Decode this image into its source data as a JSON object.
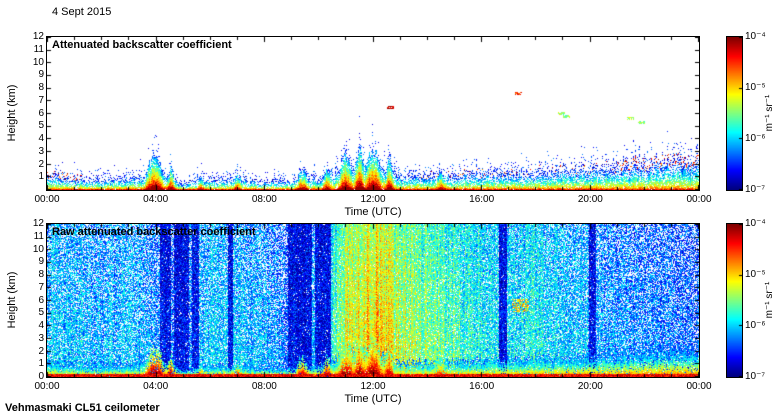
{
  "header": {
    "date": "4 Sept 2015"
  },
  "footer": {
    "instrument": "Vehmasmaki CL51 ceilometer"
  },
  "chart_data": [
    {
      "type": "heatmap",
      "title": "Attenuated backscatter coefficient",
      "xlabel": "Time (UTC)",
      "ylabel": "Height (km)",
      "x_ticks": [
        "00:00",
        "04:00",
        "08:00",
        "12:00",
        "16:00",
        "20:00",
        "00:00"
      ],
      "x_range_hours": [
        0,
        24
      ],
      "y_ticks": [
        12,
        11,
        10,
        9,
        8,
        7,
        6,
        5,
        4,
        3,
        2,
        1
      ],
      "ylim": [
        0,
        12
      ],
      "colormap": "jet",
      "colorbar": {
        "unit": "m⁻¹ sr⁻¹",
        "ticks": [
          "10⁻⁴",
          "10⁻⁵",
          "10⁻⁶",
          "10⁻⁷"
        ],
        "scale": "log10",
        "range": [
          1e-07,
          0.0001
        ]
      },
      "boundary_layer_top_km_hourly": [
        1.15,
        0.95,
        0.85,
        0.95,
        1.3,
        0.55,
        0.85,
        0.9,
        0.7,
        0.75,
        1.0,
        1.8,
        2.0,
        1.2,
        1.1,
        1.2,
        1.3,
        1.35,
        1.45,
        1.55,
        1.65,
        1.85,
        2.0,
        2.15,
        2.25
      ],
      "plumes": [
        {
          "t": 3.95,
          "w": 0.45,
          "top": 2.4,
          "v": 0.95
        },
        {
          "t": 4.55,
          "w": 0.2,
          "top": 1.6,
          "v": 0.85
        },
        {
          "t": 5.65,
          "w": 0.15,
          "top": 1.0,
          "v": 0.6
        },
        {
          "t": 7.0,
          "w": 0.2,
          "top": 1.1,
          "v": 0.65
        },
        {
          "t": 9.4,
          "w": 0.3,
          "top": 1.5,
          "v": 0.7
        },
        {
          "t": 10.3,
          "w": 0.2,
          "top": 1.6,
          "v": 0.7
        },
        {
          "t": 11.0,
          "w": 0.35,
          "top": 2.6,
          "v": 0.9
        },
        {
          "t": 11.5,
          "w": 0.25,
          "top": 2.9,
          "v": 0.95
        },
        {
          "t": 12.0,
          "w": 0.4,
          "top": 3.0,
          "v": 1.0
        },
        {
          "t": 12.6,
          "w": 0.2,
          "top": 2.2,
          "v": 0.85
        },
        {
          "t": 14.5,
          "w": 0.25,
          "top": 1.4,
          "v": 0.6
        }
      ],
      "cloud_specks": [
        {
          "t": 12.65,
          "h": 6.5,
          "v": 0.95
        },
        {
          "t": 17.35,
          "h": 7.6,
          "v": 0.8
        },
        {
          "t": 18.95,
          "h": 6.0,
          "v": 0.55
        },
        {
          "t": 19.15,
          "h": 5.8,
          "v": 0.5
        },
        {
          "t": 21.5,
          "h": 5.6,
          "v": 0.55
        },
        {
          "t": 21.9,
          "h": 5.3,
          "v": 0.5
        }
      ]
    },
    {
      "type": "heatmap",
      "title": "Raw attenuated backscatter coefficient",
      "xlabel": "Time (UTC)",
      "ylabel": "Height (km)",
      "x_ticks": [
        "00:00",
        "04:00",
        "08:00",
        "12:00",
        "16:00",
        "20:00",
        "00:00"
      ],
      "x_range_hours": [
        0,
        24
      ],
      "y_ticks": [
        12,
        11,
        10,
        9,
        8,
        7,
        6,
        5,
        4,
        3,
        2,
        1,
        0
      ],
      "ylim": [
        0,
        12
      ],
      "colormap": "jet",
      "colorbar": {
        "unit": "m⁻¹ sr⁻¹",
        "ticks": [
          "10⁻⁴",
          "10⁻⁵",
          "10⁻⁶",
          "10⁻⁷"
        ],
        "scale": "log10",
        "range": [
          1e-07,
          0.0001
        ]
      },
      "background_level_hourly": [
        0.3,
        0.3,
        0.28,
        0.3,
        0.26,
        0.2,
        0.33,
        0.3,
        0.28,
        0.2,
        0.28,
        0.55,
        0.66,
        0.54,
        0.48,
        0.43,
        0.38,
        0.34,
        0.36,
        0.31,
        0.28,
        0.26,
        0.24,
        0.22,
        0.2
      ],
      "dark_stripes": [
        {
          "t": 4.35,
          "w": 0.22
        },
        {
          "t": 4.95,
          "w": 0.28
        },
        {
          "t": 5.45,
          "w": 0.12
        },
        {
          "t": 6.75,
          "w": 0.1
        },
        {
          "t": 9.3,
          "w": 0.45
        },
        {
          "t": 10.15,
          "w": 0.3
        },
        {
          "t": 16.8,
          "w": 0.15
        },
        {
          "t": 20.1,
          "w": 0.12
        }
      ],
      "boundary_layer_top_km_hourly": [
        1.15,
        0.95,
        0.85,
        0.95,
        1.3,
        0.55,
        0.85,
        0.9,
        0.7,
        0.75,
        1.0,
        1.8,
        2.0,
        1.2,
        1.1,
        1.2,
        1.3,
        1.35,
        1.45,
        1.55,
        1.65,
        1.85,
        2.0,
        2.15,
        2.25
      ],
      "plumes": [
        {
          "t": 3.95,
          "w": 0.45,
          "top": 2.4,
          "v": 0.95
        },
        {
          "t": 4.55,
          "w": 0.2,
          "top": 1.6,
          "v": 0.85
        },
        {
          "t": 5.65,
          "w": 0.15,
          "top": 1.0,
          "v": 0.6
        },
        {
          "t": 7.0,
          "w": 0.2,
          "top": 1.1,
          "v": 0.65
        },
        {
          "t": 9.4,
          "w": 0.3,
          "top": 1.5,
          "v": 0.7
        },
        {
          "t": 10.3,
          "w": 0.2,
          "top": 1.6,
          "v": 0.7
        },
        {
          "t": 11.0,
          "w": 0.35,
          "top": 2.6,
          "v": 0.9
        },
        {
          "t": 11.5,
          "w": 0.25,
          "top": 2.9,
          "v": 0.95
        },
        {
          "t": 12.0,
          "w": 0.4,
          "top": 3.0,
          "v": 1.0
        },
        {
          "t": 12.6,
          "w": 0.2,
          "top": 2.2,
          "v": 0.85
        },
        {
          "t": 14.5,
          "w": 0.25,
          "top": 1.4,
          "v": 0.6
        }
      ],
      "patches": [
        {
          "t": 17.45,
          "h": 5.6,
          "v": 0.68
        }
      ]
    }
  ]
}
